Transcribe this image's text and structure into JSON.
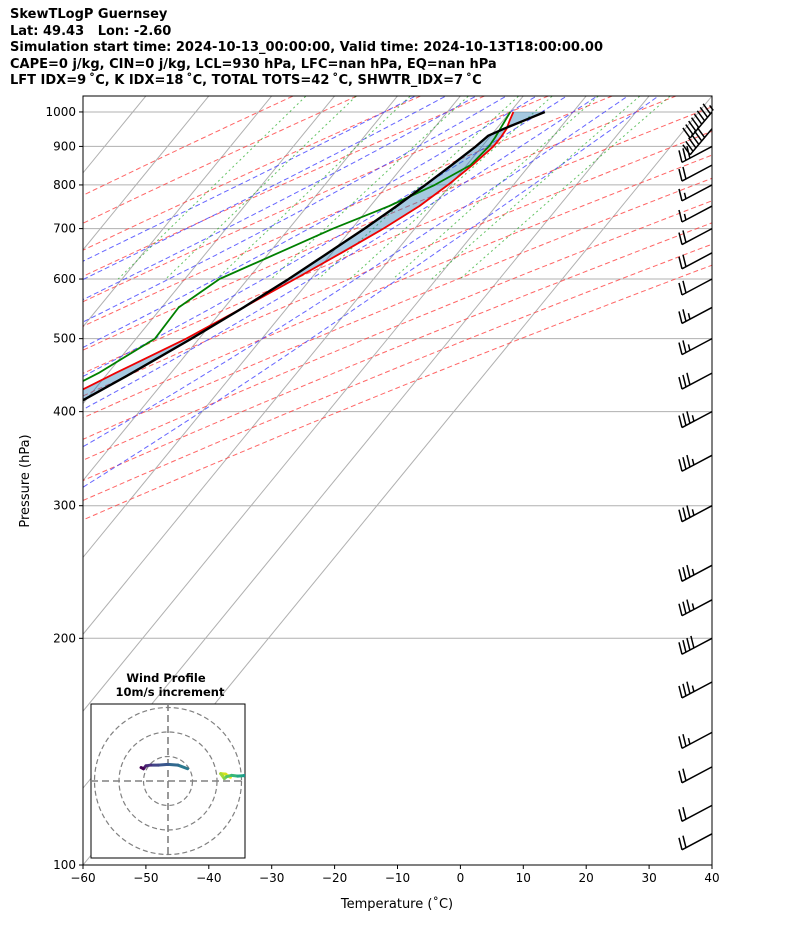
{
  "title": {
    "line1": "SkewTLogP Guernsey",
    "line2": "Lat: 49.43   Lon: -2.60",
    "line3": "Simulation start time: 2024-10-13_00:00:00, Valid time: 2024-10-13T18:00:00.00",
    "line4": "CAPE=0 j/kg, CIN=0 j/kg, LCL=930 hPa, LFC=nan hPa, EQ=nan hPa",
    "line5": "LFT IDX=9 ˚C, K IDX=18 ˚C, TOTAL TOTS=42 ˚C, SHWTR_IDX=7 ˚C"
  },
  "chart_data": {
    "type": "line",
    "skew_factor": 1.0,
    "xlabel": "Temperature (˚C)",
    "ylabel": "Pressure (hPa)",
    "xlim": [
      -60,
      40
    ],
    "ylim": [
      1050,
      100
    ],
    "xticks": [
      -60,
      -50,
      -40,
      -30,
      -20,
      -10,
      0,
      10,
      20,
      30,
      40
    ],
    "xtick_labels": [
      "−60",
      "−50",
      "−40",
      "−30",
      "−20",
      "−10",
      "0",
      "10",
      "20",
      "30",
      "40"
    ],
    "yticks": [
      1000,
      900,
      800,
      700,
      600,
      500,
      400,
      300,
      200,
      100
    ],
    "ytick_labels": [
      "1000",
      "900",
      "800",
      "700",
      "600",
      "500",
      "400",
      "300",
      "200",
      "100"
    ],
    "isotherms": [
      -170,
      -160,
      -150,
      -140,
      -130,
      -120,
      -110,
      -100,
      -90,
      -80,
      -70,
      -60,
      -50,
      -40,
      -30,
      -20,
      -10,
      0,
      10,
      20,
      30,
      40
    ],
    "dry_adiabats_C": [
      -30,
      -20,
      -10,
      0,
      10,
      20,
      30,
      40,
      50,
      60,
      70,
      80,
      90,
      100,
      110
    ],
    "moist_adiabats_C": [
      -10,
      -5,
      0,
      5,
      10,
      15,
      20,
      25,
      30
    ],
    "mixing_ratios_gkg": [
      0.5,
      1,
      2,
      4,
      7,
      10,
      16,
      24,
      32
    ],
    "series": [
      {
        "name": "Temperature",
        "color": "#ee0000",
        "pressure": [
          1000,
          975,
          950,
          925,
          900,
          850,
          800,
          750,
          700,
          650,
          600,
          550,
          500,
          450,
          400,
          350,
          300,
          270,
          250,
          225,
          200,
          190,
          180,
          170,
          160,
          150,
          140,
          130,
          120,
          110,
          100
        ],
        "temperature": [
          10.5,
          11,
          11.6,
          11.8,
          11.8,
          10.9,
          9.6,
          7.8,
          5.0,
          1.5,
          -2.5,
          -7.0,
          -12.0,
          -18.8,
          -26.0,
          -34.5,
          -44.0,
          -50.0,
          -54.5,
          -60.5,
          -67.0,
          -69.0,
          -64.5,
          -62.5,
          -64.0,
          -67.5,
          -70.0,
          -71.0,
          -71.5,
          -70.0,
          -69.0
        ]
      },
      {
        "name": "Dewpoint",
        "color": "#008000",
        "pressure": [
          1000,
          975,
          950,
          925,
          900,
          850,
          800,
          750,
          700,
          650,
          600,
          550,
          500,
          450,
          400,
          350,
          300,
          270,
          250,
          230,
          200,
          185,
          170,
          160,
          150,
          140,
          130,
          120,
          110,
          100
        ],
        "temperature": [
          10.0,
          10.3,
          10.6,
          10.9,
          11.1,
          10.6,
          7.5,
          3.0,
          -3.0,
          -8.5,
          -14.5,
          -17.3,
          -17.0,
          -21.5,
          -28.5,
          -38.5,
          -49.5,
          -57.0,
          -63.5,
          -73.5,
          -80.0,
          -85.0,
          -88.0,
          -95.0,
          -103.0,
          -108.0,
          -112.0,
          -114.0,
          -117.0,
          -120.0
        ]
      },
      {
        "name": "Parcel",
        "color": "#000000",
        "pressure": [
          1000,
          975,
          950,
          930,
          900,
          850,
          800,
          750,
          700,
          650,
          600,
          550,
          500,
          450,
          400,
          350,
          300,
          250,
          200,
          175,
          150,
          125,
          100
        ],
        "temperature": [
          15.5,
          13.4,
          11.2,
          9.6,
          9.0,
          7.6,
          6.0,
          4.2,
          2.0,
          -0.6,
          -3.5,
          -7.0,
          -11.2,
          -16.2,
          -22.2,
          -29.2,
          -37.7,
          -47.7,
          -59.9,
          -67.0,
          -75.0,
          -84.5,
          -96.0
        ]
      }
    ],
    "wind_barbs": [
      {
        "pressure": 1000,
        "speed_kt": 85
      },
      {
        "pressure": 950,
        "speed_kt": 60
      },
      {
        "pressure": 900,
        "speed_kt": 30
      },
      {
        "pressure": 850,
        "speed_kt": 20
      },
      {
        "pressure": 800,
        "speed_kt": 15
      },
      {
        "pressure": 750,
        "speed_kt": 15
      },
      {
        "pressure": 700,
        "speed_kt": 20
      },
      {
        "pressure": 650,
        "speed_kt": 20
      },
      {
        "pressure": 600,
        "speed_kt": 20
      },
      {
        "pressure": 550,
        "speed_kt": 25
      },
      {
        "pressure": 500,
        "speed_kt": 25
      },
      {
        "pressure": 450,
        "speed_kt": 30
      },
      {
        "pressure": 400,
        "speed_kt": 35
      },
      {
        "pressure": 350,
        "speed_kt": 35
      },
      {
        "pressure": 300,
        "speed_kt": 35
      },
      {
        "pressure": 250,
        "speed_kt": 35
      },
      {
        "pressure": 225,
        "speed_kt": 35
      },
      {
        "pressure": 200,
        "speed_kt": 40
      },
      {
        "pressure": 175,
        "speed_kt": 35
      },
      {
        "pressure": 150,
        "speed_kt": 25
      },
      {
        "pressure": 135,
        "speed_kt": 20
      },
      {
        "pressure": 120,
        "speed_kt": 20
      },
      {
        "pressure": 110,
        "speed_kt": 20
      }
    ],
    "wind_profile": {
      "title": "Wind Profile",
      "subtitle": "10m/s increment",
      "ring_increment_ms": 10,
      "points_uv": [
        [
          25.5,
          1.5
        ],
        [
          23.5,
          2.8
        ],
        [
          21.5,
          3.0
        ],
        [
          23.0,
          1.0
        ],
        [
          24.0,
          1.8
        ],
        [
          26.0,
          2.3
        ],
        [
          28.5,
          2.0
        ],
        [
          31.0,
          2.2
        ],
        [
          33.5,
          2.8
        ],
        [
          36.0,
          5.0
        ],
        [
          38.5,
          8.0
        ],
        [
          40.5,
          10.5
        ],
        [
          43.5,
          13.0
        ],
        [
          45.0,
          14.0
        ],
        [
          46.5,
          13.5
        ],
        [
          48.0,
          12.0
        ],
        [
          49.0,
          7.5
        ],
        [
          49.5,
          5.0
        ]
      ],
      "points_uv_b": [
        [
          8.0,
          5.0
        ],
        [
          4.0,
          6.5
        ],
        [
          0.0,
          6.8
        ],
        [
          -4.0,
          6.5
        ],
        [
          -7.0,
          6.5
        ],
        [
          -9.0,
          6.2
        ],
        [
          -10.0,
          5.0
        ],
        [
          -11.0,
          5.5
        ]
      ]
    }
  }
}
